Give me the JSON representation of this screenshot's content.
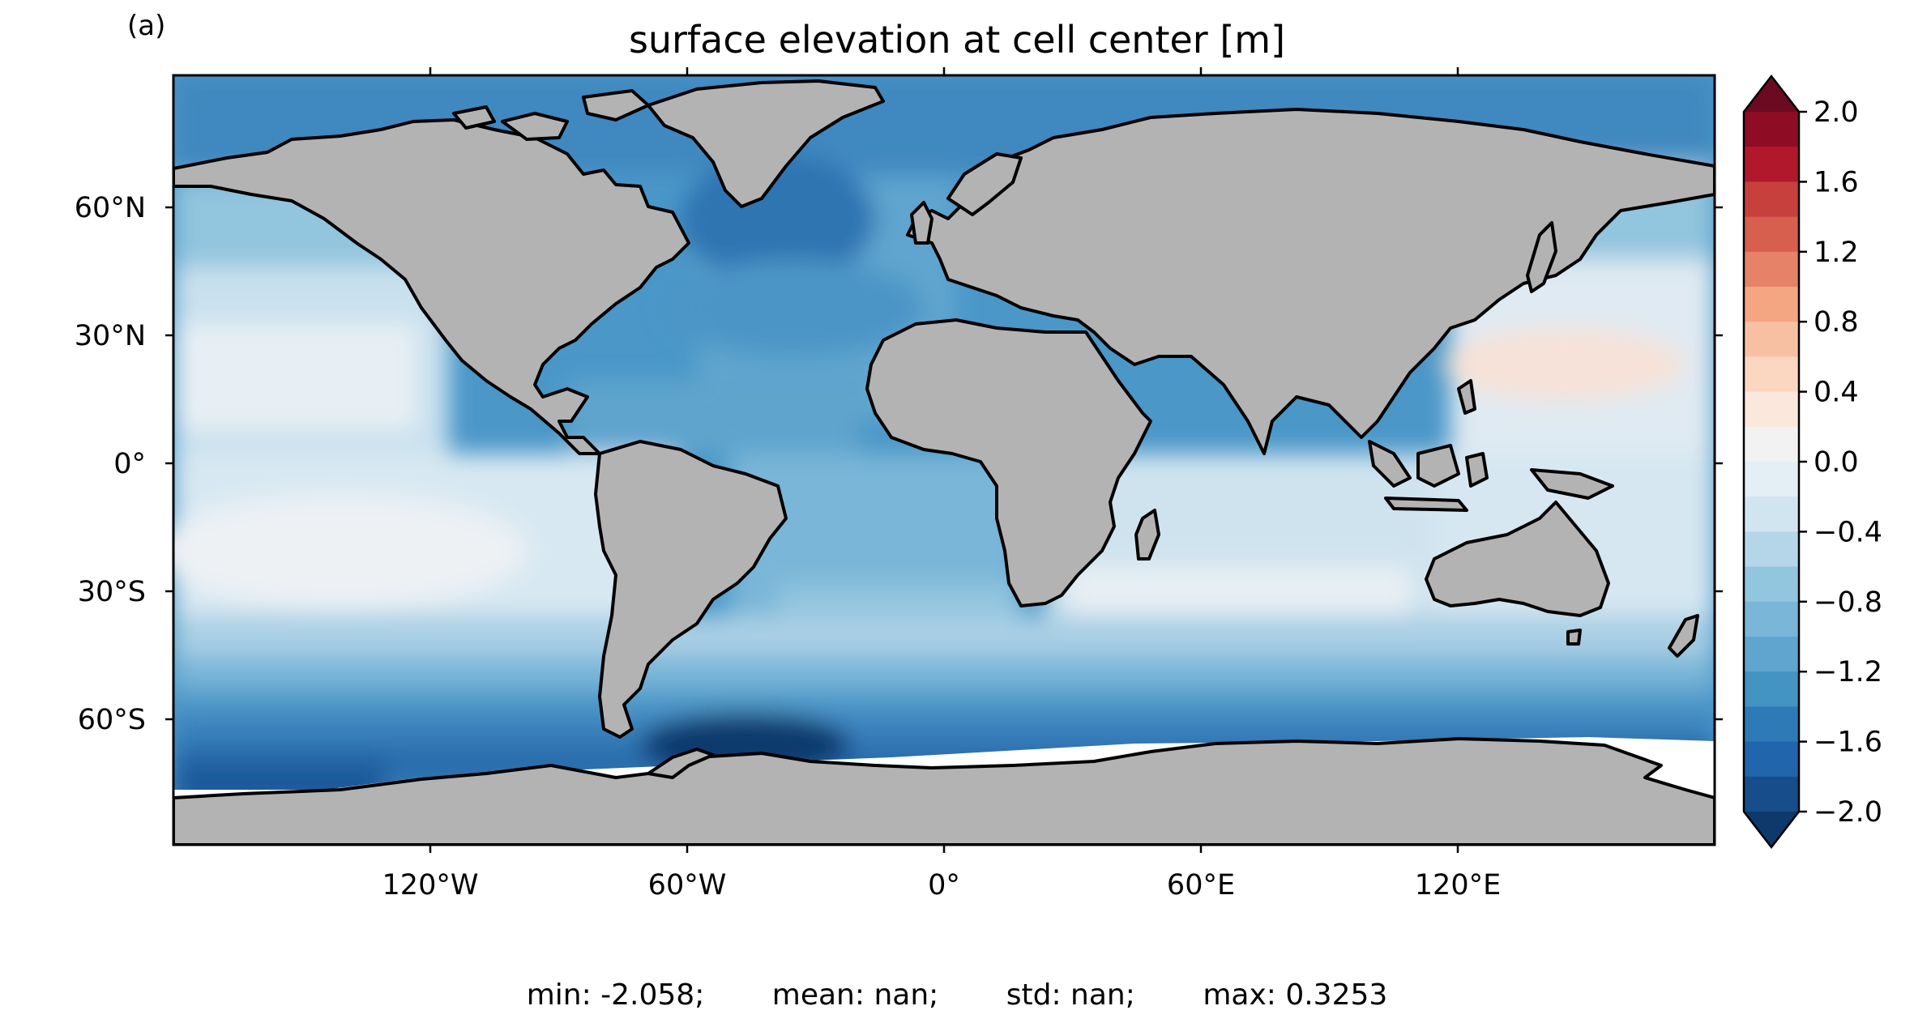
{
  "panel_label": "(a)",
  "title": "surface elevation at cell center [m]",
  "lat_ticks": [
    "60°N",
    "30°N",
    "0°",
    "30°S",
    "60°S"
  ],
  "lon_ticks": [
    "120°W",
    "60°W",
    "0°",
    "60°E",
    "120°E"
  ],
  "colorbar": {
    "ticks": [
      "2.0",
      "1.6",
      "1.2",
      "0.8",
      "0.4",
      "0.0",
      "−0.4",
      "−0.8",
      "−1.2",
      "−1.6",
      "−2.0"
    ],
    "colors": [
      "#6c0a21",
      "#8f0c25",
      "#b2182b",
      "#c7403e",
      "#d6604d",
      "#e58267",
      "#f4a582",
      "#f8c0a2",
      "#fbd6c0",
      "#fae8dd",
      "#f2f2f2",
      "#e3eef5",
      "#d1e5f0",
      "#b4d6e8",
      "#92c5de",
      "#79b6d8",
      "#5fa5cf",
      "#4393c3",
      "#2e7ab6",
      "#2166ac",
      "#164d8a",
      "#0d3a6b"
    ],
    "range": [
      -2.0,
      2.0
    ],
    "extend": "both"
  },
  "colors": {
    "land": "#b3b3b3",
    "sea_ice": "#ffffff",
    "coastline": "#000000"
  },
  "stats": {
    "min": "min: -2.058;",
    "mean": "mean: nan;",
    "std": "std: nan;",
    "max": "max: 0.3253"
  }
}
